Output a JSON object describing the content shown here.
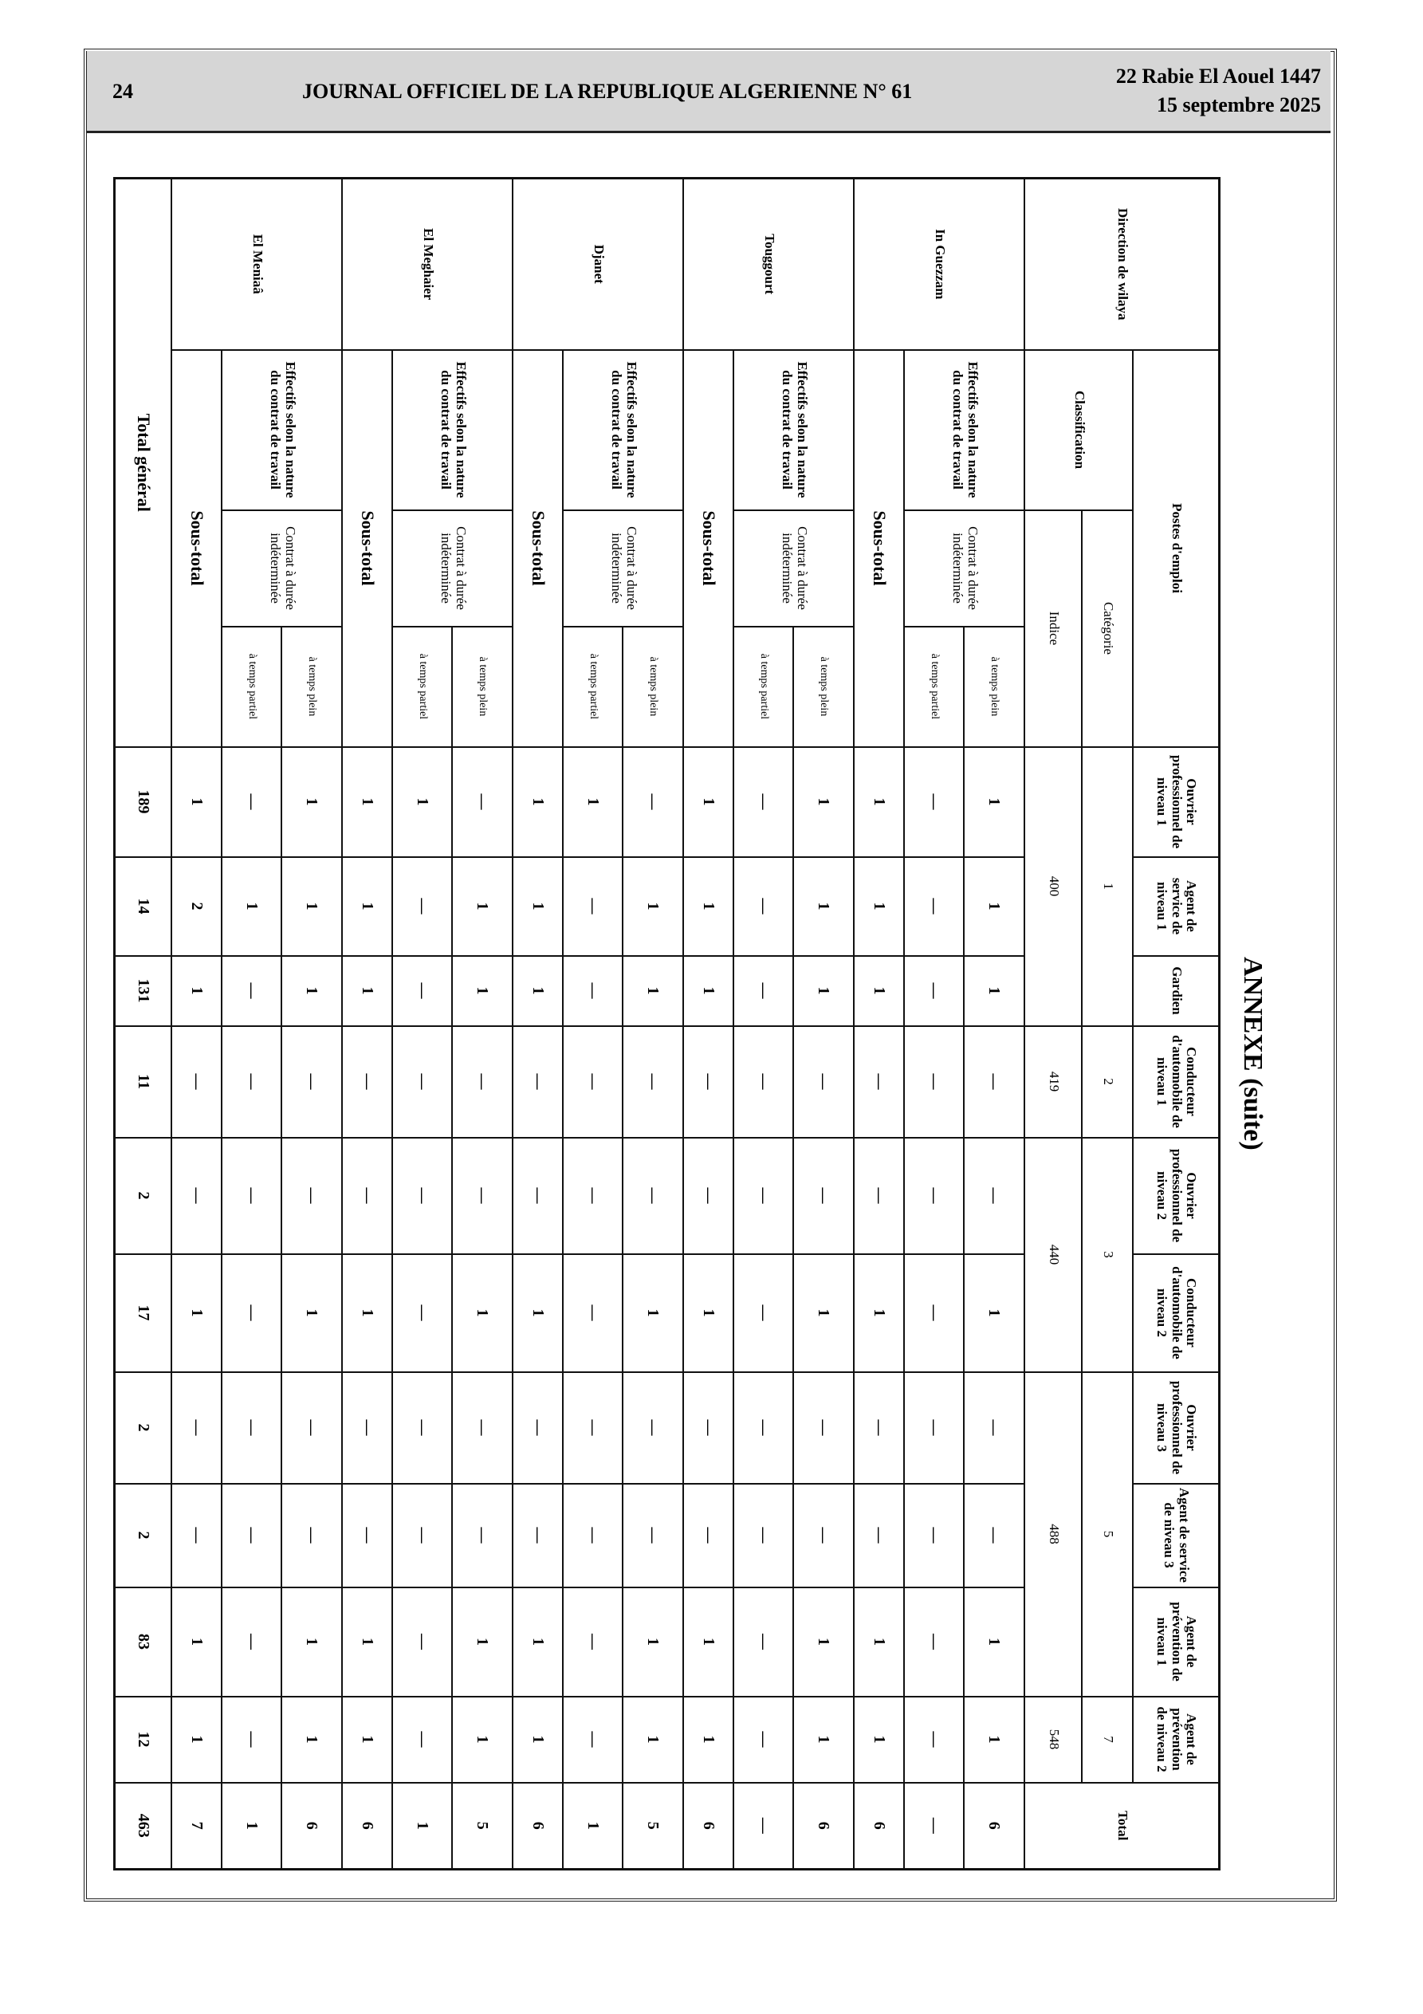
{
  "header": {
    "page": "24",
    "journal": "JOURNAL OFFICIEL DE LA REPUBLIQUE ALGERIENNE N° 61",
    "date_hijri": "22 Rabie El Aouel 1447",
    "date_gregorian": "15 septembre 2025"
  },
  "annex_title": "ANNEXE (suite)",
  "table": {
    "corner": "Direction de wilaya",
    "postes_label": "Postes d'emploi",
    "classification_label": "Classification",
    "categorie_label": "Catégorie",
    "indice_label": "Indice",
    "effectifs_label": "Effectifs selon la nature du contrat de travail",
    "contrat_label": "Contrat à durée indéterminée",
    "plein_label": "à temps plein",
    "partiel_label": "à temps partiel",
    "sous_total_label": "Sous-total",
    "total_label": "Total",
    "total_general_label": "Total général",
    "postes": [
      "Ouvrier professionnel de niveau 1",
      "Agent de service de niveau 1",
      "Gardien",
      "Conducteur d'automobile de niveau 1",
      "Ouvrier professionnel de niveau 2",
      "Conducteur d'automobile de niveau 2",
      "Ouvrier professionnel de niveau 3",
      "Agent de service de niveau 3",
      "Agent de prévention de niveau 1",
      "Agent de prévention de niveau 2"
    ],
    "categories": [
      "1",
      "2",
      "3",
      "5",
      "7"
    ],
    "indices": [
      "400",
      "419",
      "440",
      "488",
      "548"
    ],
    "wilayas": [
      {
        "name": "In Guezzam",
        "plein": [
          "1",
          "1",
          "1",
          "—",
          "—",
          "1",
          "—",
          "—",
          "1",
          "1",
          "6"
        ],
        "partiel": [
          "—",
          "—",
          "—",
          "—",
          "—",
          "—",
          "—",
          "—",
          "—",
          "—",
          "—"
        ],
        "sous_total": [
          "1",
          "1",
          "1",
          "—",
          "—",
          "1",
          "—",
          "—",
          "1",
          "1",
          "6"
        ]
      },
      {
        "name": "Touggourt",
        "plein": [
          "1",
          "1",
          "1",
          "—",
          "—",
          "1",
          "—",
          "—",
          "1",
          "1",
          "6"
        ],
        "partiel": [
          "—",
          "—",
          "—",
          "—",
          "—",
          "—",
          "—",
          "—",
          "—",
          "—",
          "—"
        ],
        "sous_total": [
          "1",
          "1",
          "1",
          "—",
          "—",
          "1",
          "—",
          "—",
          "1",
          "1",
          "6"
        ]
      },
      {
        "name": "Djanet",
        "plein": [
          "—",
          "1",
          "1",
          "—",
          "—",
          "1",
          "—",
          "—",
          "1",
          "1",
          "5"
        ],
        "partiel": [
          "1",
          "—",
          "—",
          "—",
          "—",
          "—",
          "—",
          "—",
          "—",
          "—",
          "1"
        ],
        "sous_total": [
          "1",
          "1",
          "1",
          "—",
          "—",
          "1",
          "—",
          "—",
          "1",
          "1",
          "6"
        ]
      },
      {
        "name": "El Meghaier",
        "plein": [
          "—",
          "1",
          "1",
          "—",
          "—",
          "1",
          "—",
          "—",
          "1",
          "1",
          "5"
        ],
        "partiel": [
          "1",
          "—",
          "—",
          "—",
          "—",
          "—",
          "—",
          "—",
          "—",
          "—",
          "1"
        ],
        "sous_total": [
          "1",
          "1",
          "1",
          "—",
          "—",
          "1",
          "—",
          "—",
          "1",
          "1",
          "6"
        ]
      },
      {
        "name": "El Meniaâ",
        "plein": [
          "1",
          "1",
          "1",
          "—",
          "—",
          "1",
          "—",
          "—",
          "1",
          "1",
          "6"
        ],
        "partiel": [
          "—",
          "1",
          "—",
          "—",
          "—",
          "—",
          "—",
          "—",
          "—",
          "—",
          "1"
        ],
        "sous_total": [
          "1",
          "2",
          "1",
          "—",
          "—",
          "1",
          "—",
          "—",
          "1",
          "1",
          "7"
        ]
      }
    ],
    "total_general": [
      "189",
      "14",
      "131",
      "11",
      "2",
      "17",
      "2",
      "2",
      "83",
      "12",
      "463"
    ]
  }
}
